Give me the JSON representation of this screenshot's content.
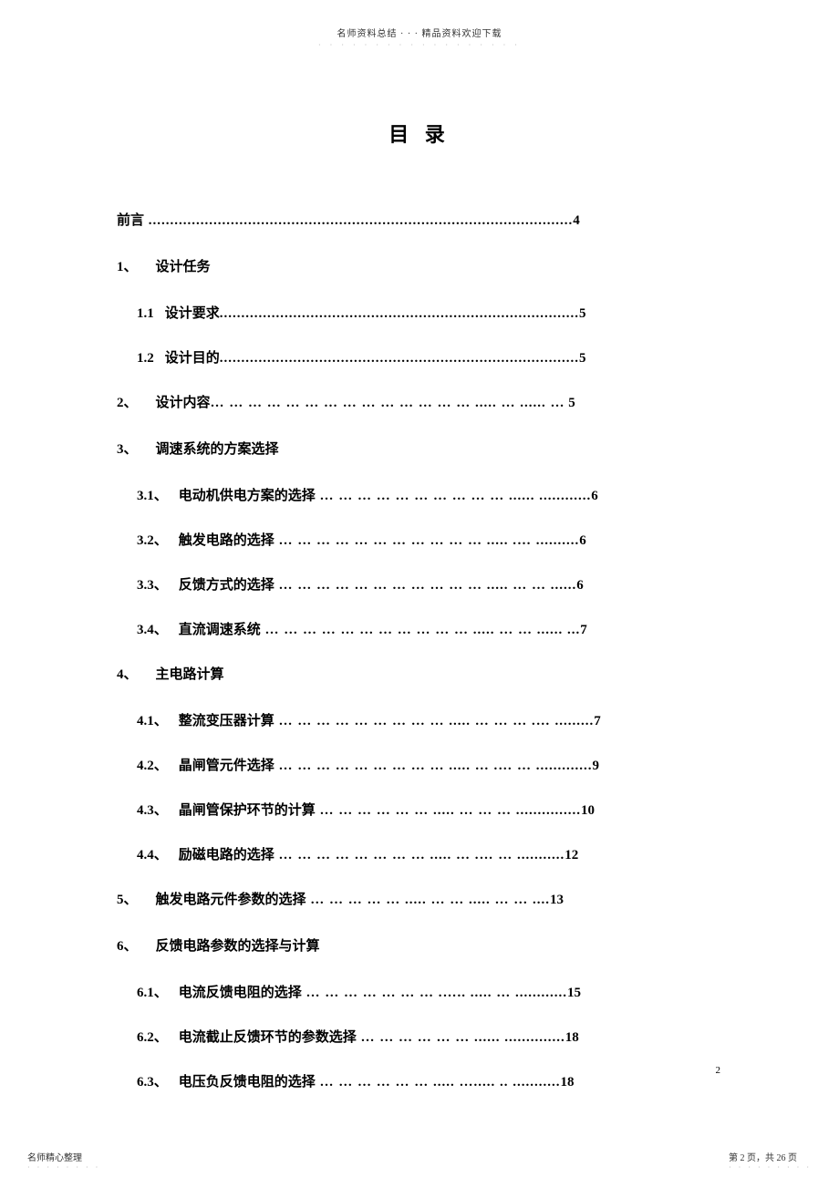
{
  "header": {
    "text": "名师资料总结 · · · 精品资料欢迎下载",
    "dots": "· · · · · · · · · · · · · · · · · ·"
  },
  "title": "目  录",
  "toc": {
    "items": [
      {
        "type": "line",
        "number": "",
        "label": "前言",
        "dots": "..................................................................................................",
        "page": "4",
        "indent": 0
      },
      {
        "type": "section",
        "number": "1、",
        "label": "设计任务",
        "dots": "",
        "page": "",
        "indent": 0
      },
      {
        "type": "line",
        "number": "1.1",
        "label": "设计要求",
        "dots": "...................................................................................",
        "page": "5",
        "indent": 1
      },
      {
        "type": "line",
        "number": "1.2",
        "label": "设计目的",
        "dots": "...................................................................................",
        "page": "5",
        "indent": 1
      },
      {
        "type": "line",
        "number": "2、",
        "label": "设计内容",
        "dots": "… … … … … … … … … … … … … …   ..... … ...... …",
        "page": " 5",
        "indent": 0
      },
      {
        "type": "section",
        "number": "3、",
        "label": "调速系统的方案选择",
        "dots": "",
        "page": "",
        "indent": 0
      },
      {
        "type": "line",
        "number": "3.1、",
        "label": "电动机供电方案的选择",
        "dots": "  … … … … … … … … … …   ...... ............",
        "page": "6",
        "indent": 1
      },
      {
        "type": "line",
        "number": "3.2、",
        "label": "触发电路的选择",
        "dots": " … … … … … … … … … … …   ..... .… ..........",
        "page": "6",
        "indent": 1
      },
      {
        "type": "line",
        "number": "3.3、",
        "label": "反馈方式的选择",
        "dots": " … … … … … … … … … … …   ..... … … ......",
        "page": "6",
        "indent": 1
      },
      {
        "type": "line",
        "number": "3.4、",
        "label": "直流调速系统",
        "dots": " … … … … … … … … … … …   ..... … …  ...... ...",
        "page": "7",
        "indent": 1
      },
      {
        "type": "section",
        "number": "4、",
        "label": "主电路计算",
        "dots": "",
        "page": "",
        "indent": 0
      },
      {
        "type": "line",
        "number": "4.1、",
        "label": "整流变压器计算",
        "dots": " … … … … … … … … …   ..... … … …  .… .........",
        "page": "7",
        "indent": 1
      },
      {
        "type": "line",
        "number": "4.2、",
        "label": "晶闸管元件选择",
        "dots": " … … … … … … … … …   ..... … .… …  .............",
        "page": "9",
        "indent": 1
      },
      {
        "type": "line",
        "number": "4.3、",
        "label": "晶闸管保护环节的计算",
        "dots": "  … … … … … …   ..... … … …  ...............",
        "page": "10",
        "indent": 1
      },
      {
        "type": "line",
        "number": "4.4、",
        "label": "励磁电路的选择",
        "dots": " … … … … … … … …   ..... …  .… …  ...........",
        "page": "12",
        "indent": 1
      },
      {
        "type": "line",
        "number": "5、",
        "label": "触发电路元件参数的选择",
        "dots": "  … … … … …   ..... … …  ..... … …  ....",
        "page": "13",
        "indent": 0
      },
      {
        "type": "section",
        "number": "6、",
        "label": "反馈电路参数的选择与计算",
        "dots": "",
        "page": "",
        "indent": 0
      },
      {
        "type": "line",
        "number": "6.1、",
        "label": "电流反馈电阻的选择",
        "dots": "  … … … … … … …   .….. ..... …  ............",
        "page": "15",
        "indent": 1
      },
      {
        "type": "line",
        "number": "6.2、",
        "label": "电流截止反馈环节的参数选择",
        "dots": "   … … … … … …   ...... ..............",
        "page": "18",
        "indent": 1
      },
      {
        "type": "line",
        "number": "6.3、",
        "label": "电压负反馈电阻的选择",
        "dots": "   … … … … … …   ..... …..... .. ...........",
        "page": "18",
        "indent": 1
      }
    ]
  },
  "pageNumber": "2",
  "footer": {
    "left": "名师精心整理",
    "leftDots": "· · · · · · · ·",
    "right": "第 2 页，共 26 页",
    "rightDots": "· · · · · · · · ·"
  }
}
